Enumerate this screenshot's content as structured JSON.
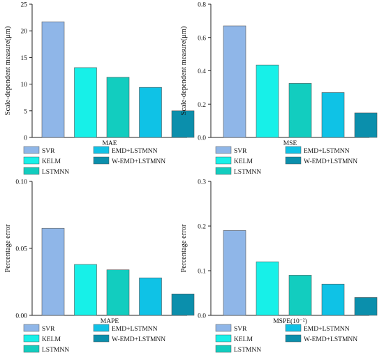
{
  "colors": {
    "SVR": "#8fb6e8",
    "KELM": "#17f0e8",
    "LSTMNN": "#12cdbf",
    "EMD+LSTMNN": "#0fc2e6",
    "W-EMD+LSTMNN": "#0b8fac",
    "axis": "#222222"
  },
  "chart_data": [
    {
      "type": "bar",
      "title": "",
      "xlabel": "MAE",
      "ylabel": "Scale-dependent measure(μm)",
      "categories": [
        "SVR",
        "KELM",
        "LSTMNN",
        "EMD+LSTMNN",
        "W-EMD+LSTMNN"
      ],
      "values": [
        21.7,
        13.1,
        11.3,
        9.4,
        5.0
      ],
      "ylim": [
        0,
        25
      ],
      "yticks": [
        0,
        5,
        10,
        15,
        20,
        25
      ],
      "ytick_labels": [
        "0",
        "5",
        "10",
        "15",
        "20",
        "25"
      ],
      "grid": false,
      "legend": [
        "SVR",
        "KELM",
        "LSTMNN",
        "EMD+LSTMNN",
        "W-EMD+LSTMNN"
      ]
    },
    {
      "type": "bar",
      "title": "",
      "xlabel": "MSE",
      "ylabel": "Scale-dependent measure(μm)",
      "categories": [
        "SVR",
        "KELM",
        "LSTMNN",
        "EMD+LSTMNN",
        "W-EMD+LSTMNN"
      ],
      "values": [
        0.67,
        0.435,
        0.325,
        0.27,
        0.147
      ],
      "ylim": [
        0,
        0.8
      ],
      "yticks": [
        0,
        0.2,
        0.4,
        0.6,
        0.8
      ],
      "ytick_labels": [
        "0.0",
        "0.2",
        "0.4",
        "0.6",
        "0.8"
      ],
      "grid": false,
      "legend": [
        "SVR",
        "KELM",
        "LSTMNN",
        "EMD+LSTMNN",
        "W-EMD+LSTMNN"
      ]
    },
    {
      "type": "bar",
      "title": "",
      "xlabel": "MAPE",
      "ylabel": "Percentage error",
      "categories": [
        "SVR",
        "KELM",
        "LSTMNN",
        "EMD+LSTMNN",
        "W-EMD+LSTMNN"
      ],
      "values": [
        0.065,
        0.038,
        0.034,
        0.028,
        0.016
      ],
      "ylim": [
        0,
        0.1
      ],
      "yticks": [
        0,
        0.05,
        0.1
      ],
      "ytick_labels": [
        "0.00",
        "0.05",
        "0.10"
      ],
      "grid": false,
      "legend": [
        "SVR",
        "KELM",
        "LSTMNN",
        "EMD+LSTMNN",
        "W-EMD+LSTMNN"
      ]
    },
    {
      "type": "bar",
      "title": "",
      "xlabel": "MSPE(10⁻²)",
      "ylabel": "Percentage error",
      "categories": [
        "SVR",
        "KELM",
        "LSTMNN",
        "EMD+LSTMNN",
        "W-EMD+LSTMNN"
      ],
      "values": [
        0.19,
        0.12,
        0.09,
        0.07,
        0.04
      ],
      "ylim": [
        0,
        0.3
      ],
      "yticks": [
        0,
        0.1,
        0.2,
        0.3
      ],
      "ytick_labels": [
        "0.0",
        "0.1",
        "0.2",
        "0.3"
      ],
      "grid": false,
      "legend": [
        "SVR",
        "KELM",
        "LSTMNN",
        "EMD+LSTMNN",
        "W-EMD+LSTMNN"
      ]
    }
  ]
}
